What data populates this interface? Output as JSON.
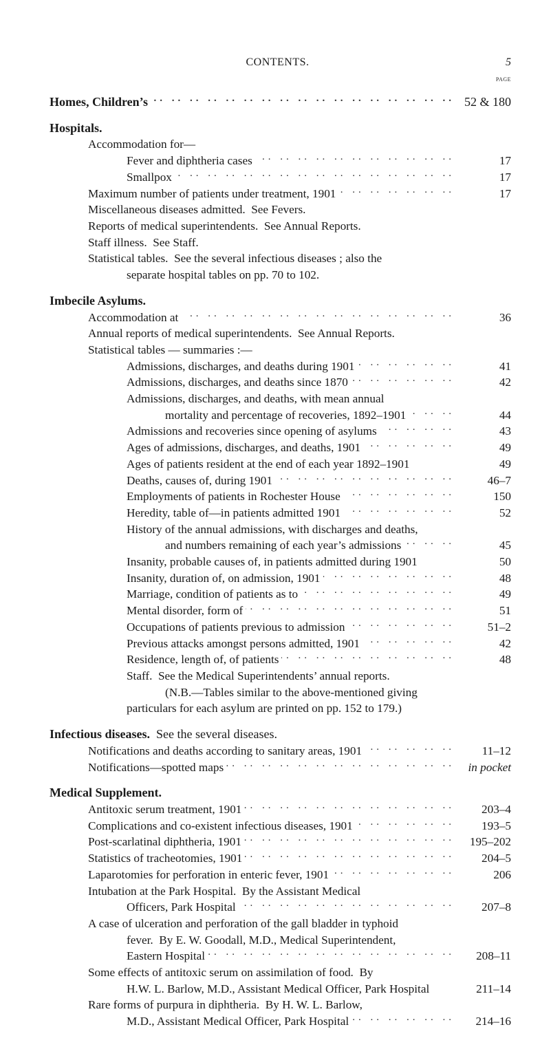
{
  "header": {
    "title": "CONTENTS.",
    "page_number": "5",
    "page_word": "page"
  },
  "sections": [
    {
      "head": "Homes, Children’s",
      "head_page": "52 & 180"
    },
    {
      "head": "Hospitals.",
      "lines": [
        {
          "indent": 1,
          "text": "Accommodation for—",
          "leader": false,
          "page": ""
        },
        {
          "indent": 2,
          "text": "Fever and diphtheria cases",
          "leader": true,
          "page": "17"
        },
        {
          "indent": 2,
          "text": "Smallpox",
          "leader": true,
          "page": "17"
        },
        {
          "indent": 1,
          "text": "Maximum number of patients under treatment, 1901",
          "leader": true,
          "page": "17"
        },
        {
          "indent": 1,
          "text": "Miscellaneous diseases admitted.  See Fevers.",
          "leader": false,
          "page": ""
        },
        {
          "indent": 1,
          "text": "Reports of medical superintendents.  See Annual Reports.",
          "leader": false,
          "page": ""
        },
        {
          "indent": 1,
          "text": "Staff illness.  See Staff.",
          "leader": false,
          "page": ""
        },
        {
          "indent": 1,
          "text": "Statistical tables.  See the several infectious diseases ; also the",
          "leader": false,
          "page": ""
        },
        {
          "indent": 2,
          "text": "separate hospital tables on pp. 70 to 102.",
          "leader": false,
          "page": ""
        }
      ]
    },
    {
      "head": "Imbecile Asylums.",
      "lines": [
        {
          "indent": 1,
          "text": "Accommodation at",
          "leader": true,
          "page": "36"
        },
        {
          "indent": 1,
          "text": "Annual reports of medical superintendents.  See Annual Reports.",
          "leader": false,
          "page": ""
        },
        {
          "indent": 1,
          "text": "Statistical tables — summaries :—",
          "leader": false,
          "page": ""
        },
        {
          "indent": 2,
          "text": "Admissions, discharges, and deaths during 1901",
          "leader": true,
          "page": "41"
        },
        {
          "indent": 2,
          "text": "Admissions, discharges, and deaths since 1870",
          "leader": true,
          "page": "42"
        },
        {
          "indent": 2,
          "text": "Admissions, discharges, and deaths, with mean annual",
          "leader": false,
          "page": ""
        },
        {
          "indent": 3,
          "text": "mortality and percentage of recoveries, 1892–1901",
          "leader": true,
          "page": "44"
        },
        {
          "indent": 2,
          "text": "Admissions and recoveries since opening of asylums",
          "leader": true,
          "page": "43"
        },
        {
          "indent": 2,
          "text": "Ages of admissions, discharges, and deaths, 1901",
          "leader": true,
          "page": "49"
        },
        {
          "indent": 2,
          "text": "Ages of patients resident at the end of each year 1892–1901",
          "leader": false,
          "page": "49"
        },
        {
          "indent": 2,
          "text": "Deaths, causes of, during 1901",
          "leader": true,
          "page": "46–7"
        },
        {
          "indent": 2,
          "text": "Employments of patients in Rochester House",
          "leader": true,
          "page": "150"
        },
        {
          "indent": 2,
          "text": "Heredity, table of—in patients admitted 1901",
          "leader": true,
          "page": "52"
        },
        {
          "indent": 2,
          "text": "History of the annual admissions, with discharges and deaths,",
          "leader": false,
          "page": ""
        },
        {
          "indent": 3,
          "text": "and numbers remaining of each year’s admissions",
          "leader": true,
          "page": "45"
        },
        {
          "indent": 2,
          "text": "Insanity, probable causes of, in patients admitted during 1901",
          "leader": false,
          "page": "50"
        },
        {
          "indent": 2,
          "text": "Insanity, duration of, on admission, 1901",
          "leader": true,
          "page": "48"
        },
        {
          "indent": 2,
          "text": "Marriage, condition of patients as to",
          "leader": true,
          "page": "49"
        },
        {
          "indent": 2,
          "text": "Mental disorder, form of",
          "leader": true,
          "page": "51"
        },
        {
          "indent": 2,
          "text": "Occupations of patients previous to admission",
          "leader": true,
          "page": "51–2"
        },
        {
          "indent": 2,
          "text": "Previous attacks amongst persons admitted, 1901",
          "leader": true,
          "page": "42"
        },
        {
          "indent": 2,
          "text": "Residence, length of, of patients",
          "leader": true,
          "page": "48"
        },
        {
          "indent": 2,
          "text": "Staff.  See the Medical Superintendents’ annual reports.",
          "leader": false,
          "page": ""
        },
        {
          "indent": 3,
          "text": "(N.B.—Tables similar to the above-mentioned giving",
          "leader": false,
          "page": ""
        },
        {
          "indent": 2,
          "text": "particulars for each asylum are printed on pp. 152 to 179.)",
          "leader": false,
          "page": ""
        }
      ]
    },
    {
      "head": "Infectious diseases.",
      "head_suffix": "  See the several diseases.",
      "lines": [
        {
          "indent": 1,
          "text": "Notifications and deaths according to sanitary areas, 1901",
          "leader": true,
          "page": "11–12"
        },
        {
          "indent": 1,
          "text": "Notifications—spotted maps",
          "leader": true,
          "page": "in pocket",
          "italic_page": true
        }
      ]
    },
    {
      "head": "Medical Supplement.",
      "lines": [
        {
          "indent": 1,
          "text": "Antitoxic serum treatment, 1901",
          "leader": true,
          "page": "203–4"
        },
        {
          "indent": 1,
          "text": "Complications and co-existent infectious diseases, 1901",
          "leader": true,
          "page": "193–5"
        },
        {
          "indent": 1,
          "text": "Post-scarlatinal diphtheria, 1901",
          "leader": true,
          "page": "195–202"
        },
        {
          "indent": 1,
          "text": "Statistics of tracheotomies, 1901",
          "leader": true,
          "page": "204–5"
        },
        {
          "indent": 1,
          "text": "Laparotomies for perforation in enteric fever, 1901",
          "leader": true,
          "page": "206"
        },
        {
          "indent": 1,
          "text": "Intubation at the Park Hospital.  By the Assistant Medical",
          "leader": false,
          "page": ""
        },
        {
          "indent": 2,
          "text": "Officers, Park Hospital",
          "leader": true,
          "page": "207–8"
        },
        {
          "indent": 1,
          "text": "A case of ulceration and perforation of the gall bladder in typhoid",
          "leader": false,
          "page": ""
        },
        {
          "indent": 2,
          "text": "fever.  By E. W. Goodall, M.D., Medical Superintendent,",
          "leader": false,
          "page": ""
        },
        {
          "indent": 2,
          "text": "Eastern Hospital",
          "leader": true,
          "page": "208–11"
        },
        {
          "indent": 1,
          "text": "Some effects of antitoxic serum on assimilation of food.  By",
          "leader": false,
          "page": ""
        },
        {
          "indent": 2,
          "text": "H.W. L. Barlow, M.D., Assistant Medical Officer, Park Hospital",
          "leader": false,
          "page": "211–14"
        },
        {
          "indent": 1,
          "text": "Rare forms of purpura in diphtheria.  By H. W. L. Barlow,",
          "leader": false,
          "page": ""
        },
        {
          "indent": 2,
          "text": "M.D., Assistant Medical Officer, Park Hospital",
          "leader": true,
          "page": "214–16"
        }
      ]
    }
  ]
}
